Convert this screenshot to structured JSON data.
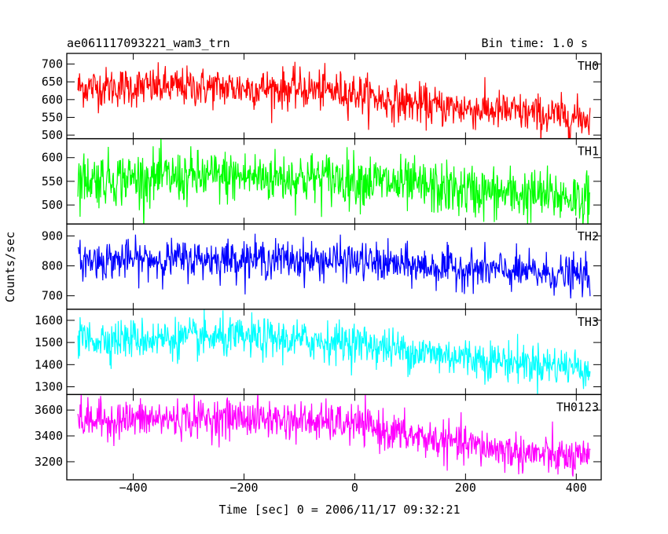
{
  "chart_data": {
    "type": "line",
    "title": "ae061117093221_wam3_trn",
    "subtitle": "Bin time: 1.0 s",
    "xlabel": "Time [sec] 0 = 2006/11/17 09:32:21",
    "ylabel": "Counts/sec",
    "xlim": [
      -520,
      445
    ],
    "x_ticks": [
      -400,
      -200,
      0,
      200,
      400
    ],
    "x_tick_labels": [
      "−400",
      "−200",
      "0",
      "200",
      "400"
    ],
    "x_range": [
      -500,
      425
    ],
    "bin_time": 1.0,
    "grid": false,
    "panels": [
      {
        "name": "TH0",
        "color": "#ff0000",
        "ylim": [
          490,
          730
        ],
        "y_ticks": [
          500,
          550,
          600,
          650,
          700
        ],
        "trend_x": [
          -500,
          -300,
          -100,
          0,
          50,
          150,
          250,
          350,
          425
        ],
        "trend_y": [
          635,
          635,
          630,
          620,
          600,
          580,
          570,
          555,
          548
        ],
        "noise": 28
      },
      {
        "name": "TH1",
        "color": "#00ff00",
        "ylim": [
          460,
          640
        ],
        "y_ticks": [
          500,
          550,
          600
        ],
        "trend_x": [
          -500,
          -200,
          0,
          100,
          250,
          425
        ],
        "trend_y": [
          555,
          560,
          555,
          540,
          525,
          515
        ],
        "noise": 28
      },
      {
        "name": "TH2",
        "color": "#0000ff",
        "ylim": [
          655,
          940
        ],
        "y_ticks": [
          700,
          800,
          900
        ],
        "trend_x": [
          -500,
          -200,
          0,
          100,
          250,
          425
        ],
        "trend_y": [
          818,
          825,
          815,
          800,
          785,
          765
        ],
        "noise": 32
      },
      {
        "name": "TH3",
        "color": "#00ffff",
        "ylim": [
          1265,
          1650
        ],
        "y_ticks": [
          1300,
          1400,
          1500,
          1600
        ],
        "trend_x": [
          -500,
          -200,
          0,
          100,
          250,
          425
        ],
        "trend_y": [
          1515,
          1520,
          1500,
          1460,
          1420,
          1385
        ],
        "noise": 45
      },
      {
        "name": "TH0123",
        "color": "#ff00ff",
        "ylim": [
          3060,
          3720
        ],
        "y_ticks": [
          3200,
          3400,
          3600
        ],
        "trend_x": [
          -500,
          -200,
          0,
          100,
          200,
          300,
          425
        ],
        "trend_y": [
          3520,
          3540,
          3490,
          3400,
          3330,
          3270,
          3210
        ],
        "noise": 75
      }
    ]
  }
}
